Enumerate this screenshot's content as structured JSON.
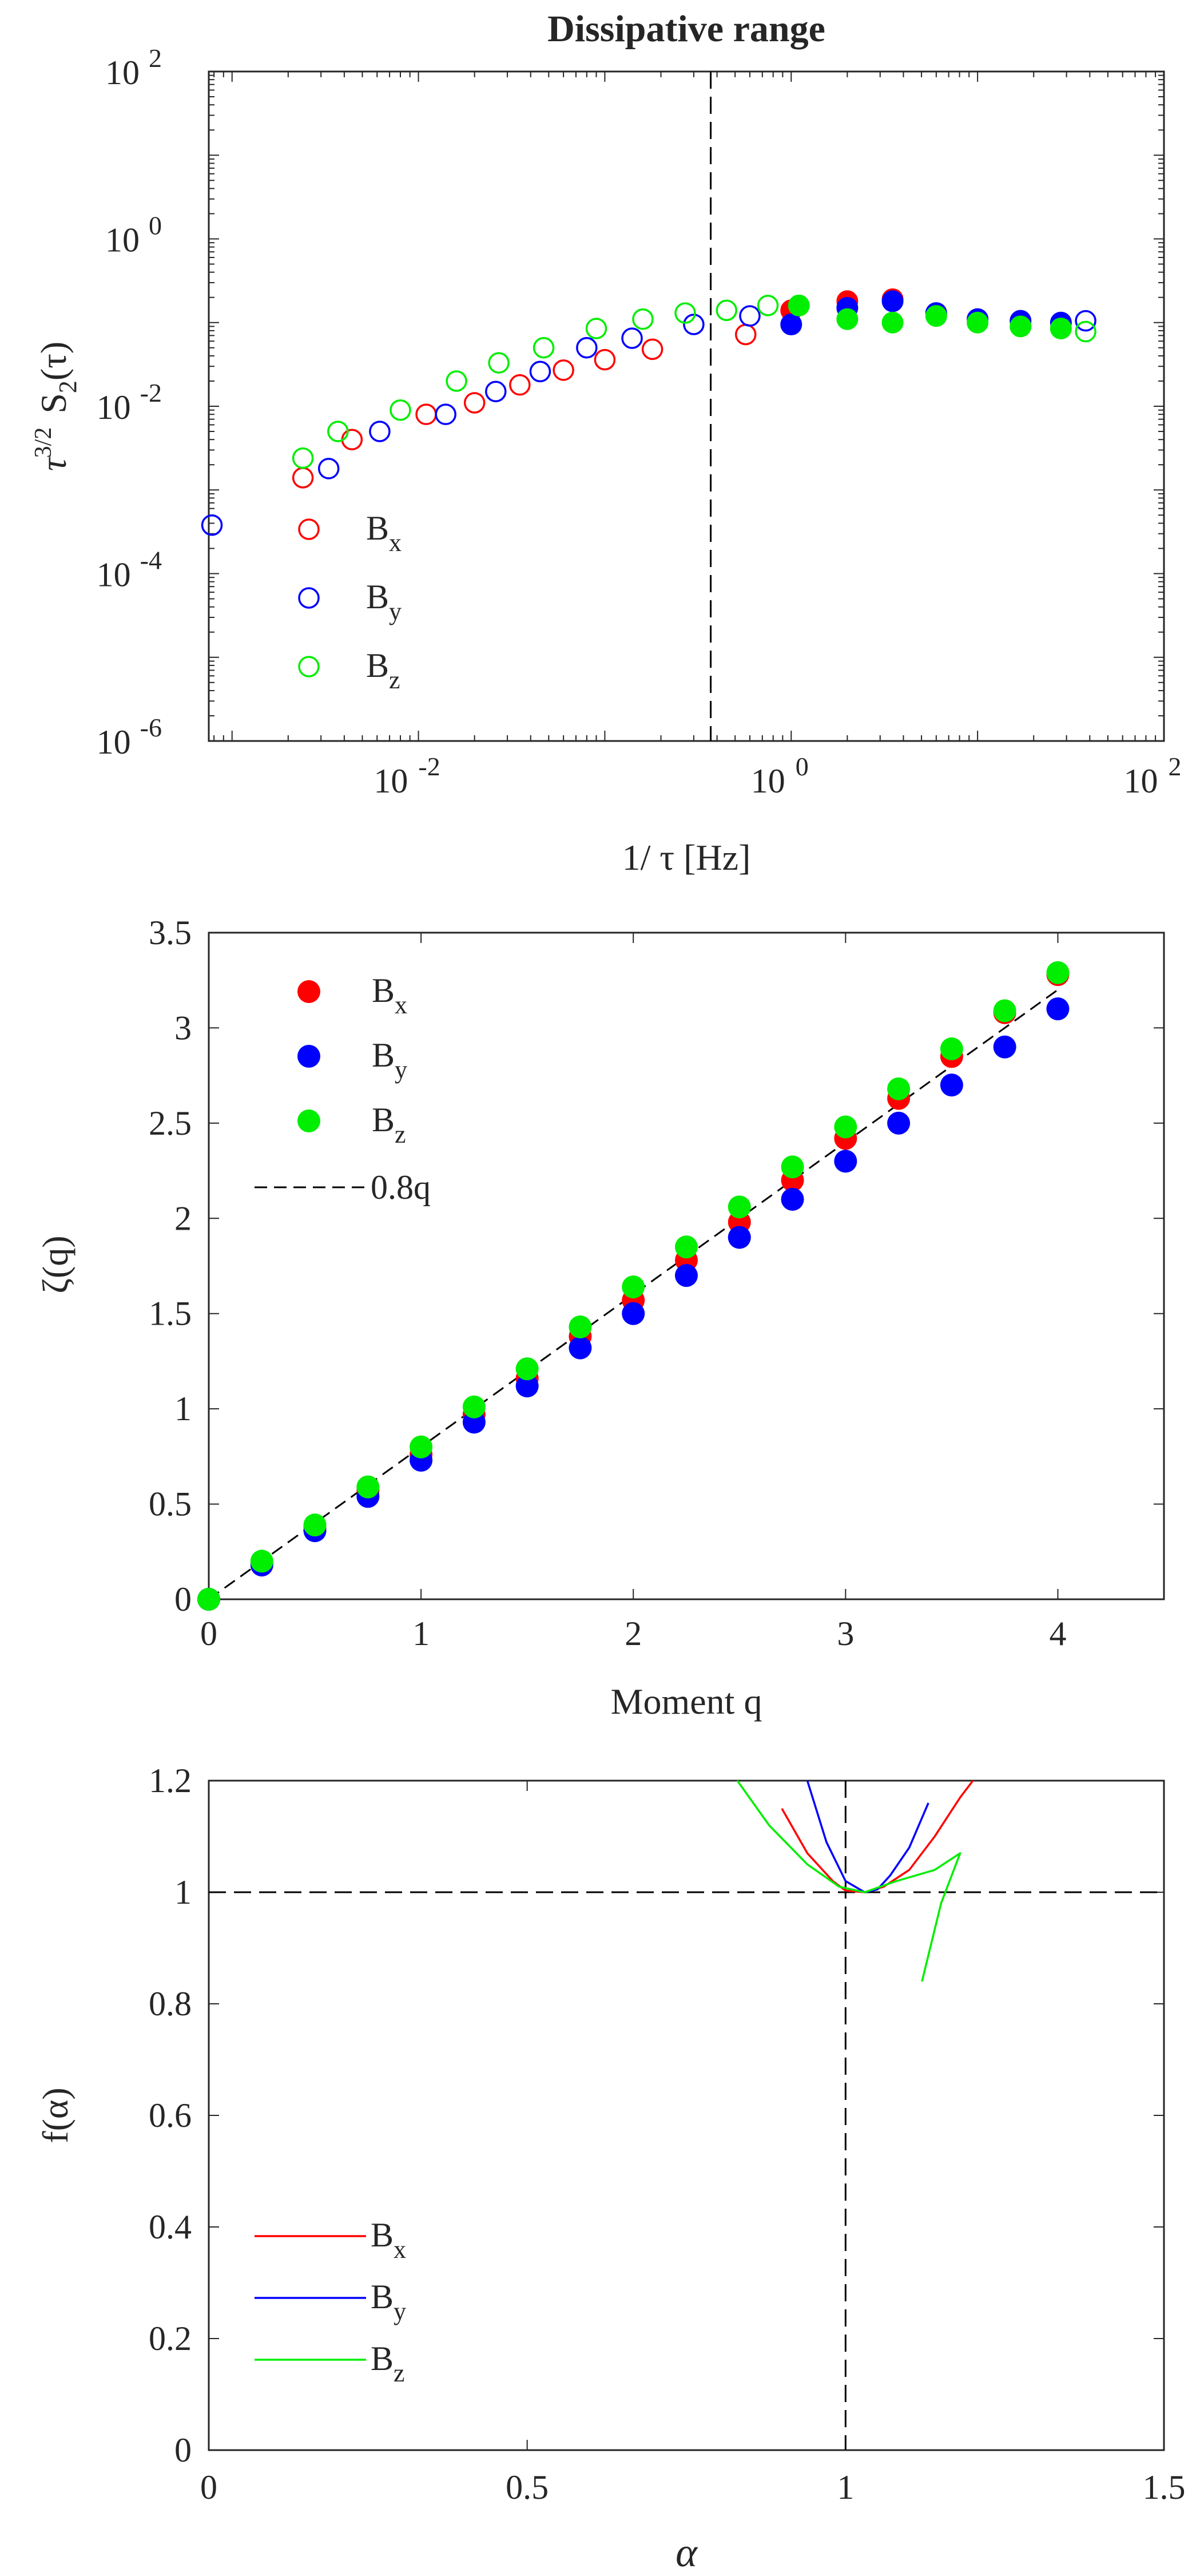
{
  "chart_data": [
    {
      "type": "scatter",
      "title": "Dissipative range",
      "xlabel": "1/ τ [Hz]",
      "ylabel_parts": [
        "τ",
        "3/2",
        "S",
        "2",
        "(τ)"
      ],
      "xscale": "log",
      "yscale": "log",
      "xlim": [
        0.00075,
        100
      ],
      "ylim": [
        1e-06,
        100
      ],
      "x_tick_base": "10",
      "x_ticks": [
        {
          "value": 0.01,
          "exp": "-2"
        },
        {
          "value": 1,
          "exp": "0"
        },
        {
          "value": 100,
          "exp": "2"
        }
      ],
      "y_tick_base": "10",
      "y_ticks": [
        {
          "value": 1e-06,
          "exp": "-6"
        },
        {
          "value": 0.0001,
          "exp": "-4"
        },
        {
          "value": 0.01,
          "exp": "-2"
        },
        {
          "value": 1,
          "exp": "0"
        },
        {
          "value": 100,
          "exp": "2"
        }
      ],
      "vline_x": 0.37,
      "legend": "top-left-lower",
      "series": [
        {
          "name": "B",
          "sub": "x",
          "color": "#ff0000",
          "open_x": [
            0.0024,
            0.0044,
            0.011,
            0.02,
            0.035,
            0.06,
            0.1,
            0.18,
            0.57
          ],
          "open_y": [
            0.0014,
            0.004,
            0.008,
            0.011,
            0.018,
            0.027,
            0.036,
            0.048,
            0.072
          ],
          "filled_x": [
            1.0,
            2.0,
            3.5
          ],
          "filled_y": [
            0.14,
            0.18,
            0.19
          ]
        },
        {
          "name": "B",
          "sub": "y",
          "color": "#0000ff",
          "open_x": [
            0.00078,
            0.0033,
            0.0062,
            0.014,
            0.026,
            0.045,
            0.08,
            0.14,
            0.3,
            0.6
          ],
          "open_y": [
            0.00038,
            0.0018,
            0.005,
            0.008,
            0.015,
            0.026,
            0.05,
            0.065,
            0.095,
            0.12
          ],
          "filled_x": [
            1.0,
            2.0,
            3.5,
            6.0,
            10,
            17,
            28
          ],
          "filled_y": [
            0.095,
            0.15,
            0.18,
            0.13,
            0.11,
            0.105,
            0.1
          ],
          "last_open_x": [
            38
          ],
          "last_open_y": [
            0.105
          ]
        },
        {
          "name": "B",
          "sub": "z",
          "color": "#00ee00",
          "open_x": [
            0.0024,
            0.0037,
            0.008,
            0.016,
            0.027,
            0.047,
            0.09,
            0.16,
            0.27,
            0.45,
            0.75
          ],
          "open_y": [
            0.0024,
            0.005,
            0.009,
            0.02,
            0.033,
            0.05,
            0.085,
            0.11,
            0.13,
            0.14,
            0.16
          ],
          "filled_x": [
            1.1,
            2.0,
            3.5,
            6.0,
            10,
            17,
            28
          ],
          "filled_y": [
            0.16,
            0.11,
            0.1,
            0.12,
            0.1,
            0.09,
            0.085
          ],
          "last_open_x": [
            38
          ],
          "last_open_y": [
            0.078
          ]
        }
      ]
    },
    {
      "type": "scatter",
      "xlabel": "Moment q",
      "ylabel": "ζ(q)",
      "xlim": [
        0,
        4.5
      ],
      "ylim": [
        0,
        3.5
      ],
      "x_ticks": [
        0,
        1,
        2,
        3,
        4
      ],
      "x_tick_labels": [
        "0",
        "1",
        "2",
        "3",
        "4"
      ],
      "y_ticks": [
        0,
        0.5,
        1,
        1.5,
        2,
        2.5,
        3,
        3.5
      ],
      "y_tick_labels": [
        "0",
        "0.5",
        "1",
        "1.5",
        "2",
        "2.5",
        "3",
        "3.5"
      ],
      "x": [
        0,
        0.25,
        0.5,
        0.75,
        1,
        1.25,
        1.5,
        1.75,
        2,
        2.25,
        2.5,
        2.75,
        3,
        3.25,
        3.5,
        3.75,
        4
      ],
      "series": [
        {
          "name": "B",
          "sub": "x",
          "color": "#ff0000",
          "values": [
            0,
            0.19,
            0.38,
            0.57,
            0.76,
            0.97,
            1.16,
            1.38,
            1.57,
            1.78,
            1.98,
            2.2,
            2.42,
            2.63,
            2.85,
            3.08,
            3.28
          ]
        },
        {
          "name": "B",
          "sub": "y",
          "color": "#0000ff",
          "values": [
            0,
            0.18,
            0.36,
            0.54,
            0.73,
            0.93,
            1.12,
            1.32,
            1.5,
            1.7,
            1.9,
            2.1,
            2.3,
            2.5,
            2.7,
            2.9,
            3.1
          ]
        },
        {
          "name": "B",
          "sub": "z",
          "color": "#00ee00",
          "values": [
            0,
            0.2,
            0.39,
            0.59,
            0.8,
            1.01,
            1.21,
            1.43,
            1.64,
            1.85,
            2.06,
            2.27,
            2.48,
            2.68,
            2.89,
            3.09,
            3.29
          ]
        }
      ],
      "reference_line": {
        "label": "0.8q",
        "slope": 0.8
      },
      "legend": "top-left"
    },
    {
      "type": "line",
      "xlabel": "α",
      "ylabel": "f(α)",
      "xlim": [
        0,
        1.5
      ],
      "ylim": [
        0,
        1.2
      ],
      "x_ticks": [
        0,
        0.5,
        1,
        1.5
      ],
      "x_tick_labels": [
        "0",
        "0.5",
        "1",
        "1.5"
      ],
      "y_ticks": [
        0,
        0.2,
        0.4,
        0.6,
        0.8,
        1,
        1.2
      ],
      "y_tick_labels": [
        "0",
        "0.2",
        "0.4",
        "0.6",
        "0.8",
        "1",
        "1.2"
      ],
      "hline_y": 1,
      "vline_x": 1,
      "legend": "bottom-left",
      "series": [
        {
          "name": "B",
          "sub": "x",
          "color": "#ff0000",
          "x": [
            0.9,
            0.94,
            0.98,
            1.0,
            1.03,
            1.06,
            1.1,
            1.14,
            1.18,
            1.2
          ],
          "y": [
            1.15,
            1.07,
            1.02,
            1.003,
            1.0,
            1.01,
            1.04,
            1.1,
            1.17,
            1.2
          ]
        },
        {
          "name": "B",
          "sub": "y",
          "color": "#0000ff",
          "x": [
            0.94,
            0.97,
            1.0,
            1.03,
            1.05,
            1.07,
            1.1,
            1.13
          ],
          "y": [
            1.2,
            1.09,
            1.02,
            1.0,
            1.005,
            1.03,
            1.08,
            1.16
          ]
        },
        {
          "name": "B",
          "sub": "z",
          "color": "#00ee00",
          "x": [
            0.83,
            0.88,
            0.94,
            0.99,
            1.03,
            1.08,
            1.14,
            1.18,
            1.15,
            1.12
          ],
          "y": [
            1.2,
            1.12,
            1.05,
            1.01,
            1.0,
            1.02,
            1.04,
            1.07,
            0.98,
            0.84
          ]
        }
      ]
    }
  ]
}
